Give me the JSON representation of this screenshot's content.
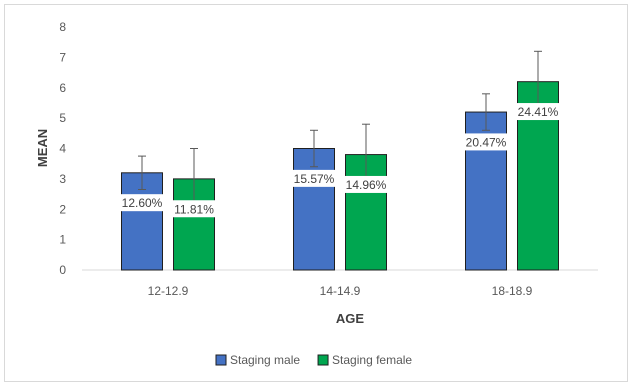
{
  "chart_data": {
    "type": "bar",
    "title": "",
    "xlabel": "AGE",
    "ylabel": "MEAN",
    "ylim": [
      0,
      8
    ],
    "yticks": [
      "0",
      "1",
      "2",
      "3",
      "4",
      "5",
      "6",
      "7",
      "8"
    ],
    "categories": [
      "12-12.9",
      "14-14.9",
      "18-18.9"
    ],
    "grid": false,
    "legend_position": "bottom",
    "series": [
      {
        "name": "Staging male",
        "color": "#4472c4",
        "values": [
          3.2,
          4.0,
          5.2
        ],
        "error": [
          0.55,
          0.6,
          0.6
        ],
        "labels": [
          "12.60%",
          "15.57%",
          "20.47%"
        ]
      },
      {
        "name": "Staging female",
        "color": "#00a650",
        "values": [
          3.0,
          3.8,
          6.2
        ],
        "error": [
          1.0,
          1.0,
          1.0
        ],
        "labels": [
          "11.81%",
          "14.96%",
          "24.41%"
        ]
      }
    ]
  }
}
